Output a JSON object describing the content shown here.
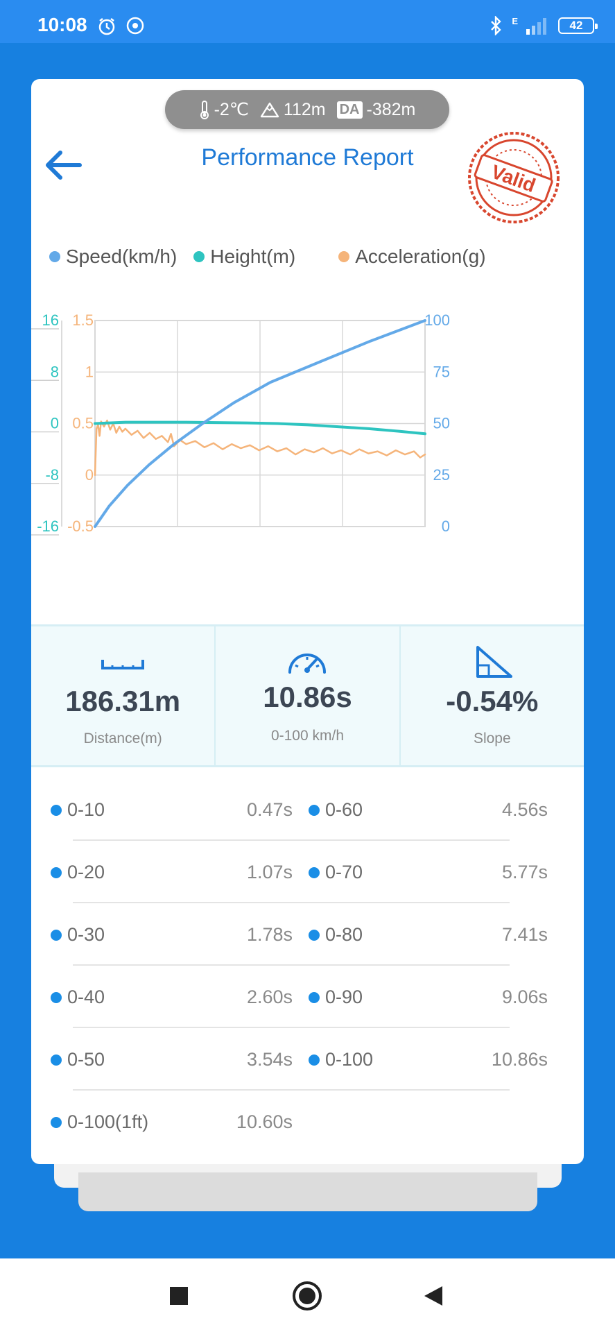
{
  "status_bar": {
    "time": "10:08",
    "network": "E",
    "battery": "42"
  },
  "environment": {
    "temperature": "-2℃",
    "altitude": "112m",
    "da_label": "DA",
    "density_altitude": "-382m"
  },
  "header": {
    "title": "Performance Report",
    "stamp": "Valid"
  },
  "legend": [
    {
      "label": "Speed(km/h)",
      "color": "#63a9e8"
    },
    {
      "label": "Height(m)",
      "color": "#2ec4c0"
    },
    {
      "label": "Acceleration(g)",
      "color": "#f5b47a"
    }
  ],
  "chart_data": {
    "type": "line",
    "x_range": [
      0,
      10.86
    ],
    "axes": {
      "height_ticks": [
        "16",
        "8",
        "0",
        "-8",
        "-16"
      ],
      "accel_ticks": [
        "1.5",
        "1",
        "0.5",
        "0",
        "-0.5"
      ],
      "speed_ticks": [
        "100",
        "75",
        "50",
        "25",
        "0"
      ]
    },
    "grid": true,
    "series": [
      {
        "name": "Speed(km/h)",
        "axis": "right",
        "color": "#63a9e8",
        "range": [
          0,
          100
        ],
        "x": [
          0,
          0.47,
          1.07,
          1.78,
          2.6,
          3.54,
          4.56,
          5.77,
          7.41,
          9.06,
          10.86
        ],
        "y": [
          0,
          10,
          20,
          30,
          40,
          50,
          60,
          70,
          80,
          90,
          100
        ]
      },
      {
        "name": "Height(m)",
        "axis": "left",
        "color": "#2ec4c0",
        "range": [
          -16,
          16
        ],
        "x": [
          0,
          1,
          3,
          5,
          6,
          7,
          8,
          9,
          10,
          10.86
        ],
        "y": [
          0,
          0.2,
          0.2,
          0.1,
          0,
          -0.2,
          -0.5,
          -0.8,
          -1.2,
          -1.6
        ]
      },
      {
        "name": "Acceleration(g)",
        "axis": "left2",
        "color": "#f5b47a",
        "range": [
          -0.5,
          1.5
        ],
        "x": [
          0,
          0.05,
          0.1,
          0.15,
          0.2,
          0.3,
          0.4,
          0.5,
          0.6,
          0.7,
          0.8,
          0.9,
          1.0,
          1.2,
          1.4,
          1.6,
          1.8,
          2.0,
          2.2,
          2.4,
          2.5,
          2.6,
          2.8,
          3.0,
          3.3,
          3.6,
          3.9,
          4.2,
          4.5,
          4.8,
          5.1,
          5.4,
          5.7,
          6.0,
          6.3,
          6.6,
          6.9,
          7.2,
          7.5,
          7.8,
          8.1,
          8.4,
          8.7,
          9.0,
          9.3,
          9.6,
          9.9,
          10.2,
          10.5,
          10.7,
          10.86
        ],
        "y": [
          0,
          0.45,
          0.49,
          0.38,
          0.52,
          0.47,
          0.53,
          0.44,
          0.5,
          0.41,
          0.47,
          0.42,
          0.45,
          0.39,
          0.43,
          0.36,
          0.41,
          0.35,
          0.38,
          0.32,
          0.4,
          0.28,
          0.34,
          0.3,
          0.33,
          0.27,
          0.31,
          0.25,
          0.3,
          0.26,
          0.29,
          0.24,
          0.28,
          0.23,
          0.26,
          0.2,
          0.25,
          0.22,
          0.26,
          0.21,
          0.24,
          0.2,
          0.25,
          0.21,
          0.23,
          0.19,
          0.24,
          0.2,
          0.23,
          0.17,
          0.2
        ]
      }
    ]
  },
  "metrics": [
    {
      "icon": "ruler-icon",
      "value": "186.31m",
      "label": "Distance(m)"
    },
    {
      "icon": "speedometer-icon",
      "value": "10.86s",
      "label": "0-100 km/h"
    },
    {
      "icon": "slope-icon",
      "value": "-0.54%",
      "label": "Slope"
    }
  ],
  "splits": [
    {
      "left_label": "0-10",
      "left_value": "0.47s",
      "right_label": "0-60",
      "right_value": "4.56s"
    },
    {
      "left_label": "0-20",
      "left_value": "1.07s",
      "right_label": "0-70",
      "right_value": "5.77s"
    },
    {
      "left_label": "0-30",
      "left_value": "1.78s",
      "right_label": "0-80",
      "right_value": "7.41s"
    },
    {
      "left_label": "0-40",
      "left_value": "2.60s",
      "right_label": "0-90",
      "right_value": "9.06s"
    },
    {
      "left_label": "0-50",
      "left_value": "3.54s",
      "right_label": "0-100",
      "right_value": "10.86s"
    },
    {
      "left_label": "0-100(1ft)",
      "left_value": "10.60s",
      "right_label": "",
      "right_value": ""
    }
  ],
  "colors": {
    "primary": "#1f7ad6",
    "speed": "#63a9e8",
    "height": "#2ec4c0",
    "accel": "#f5b47a",
    "stamp": "#d8462e"
  }
}
